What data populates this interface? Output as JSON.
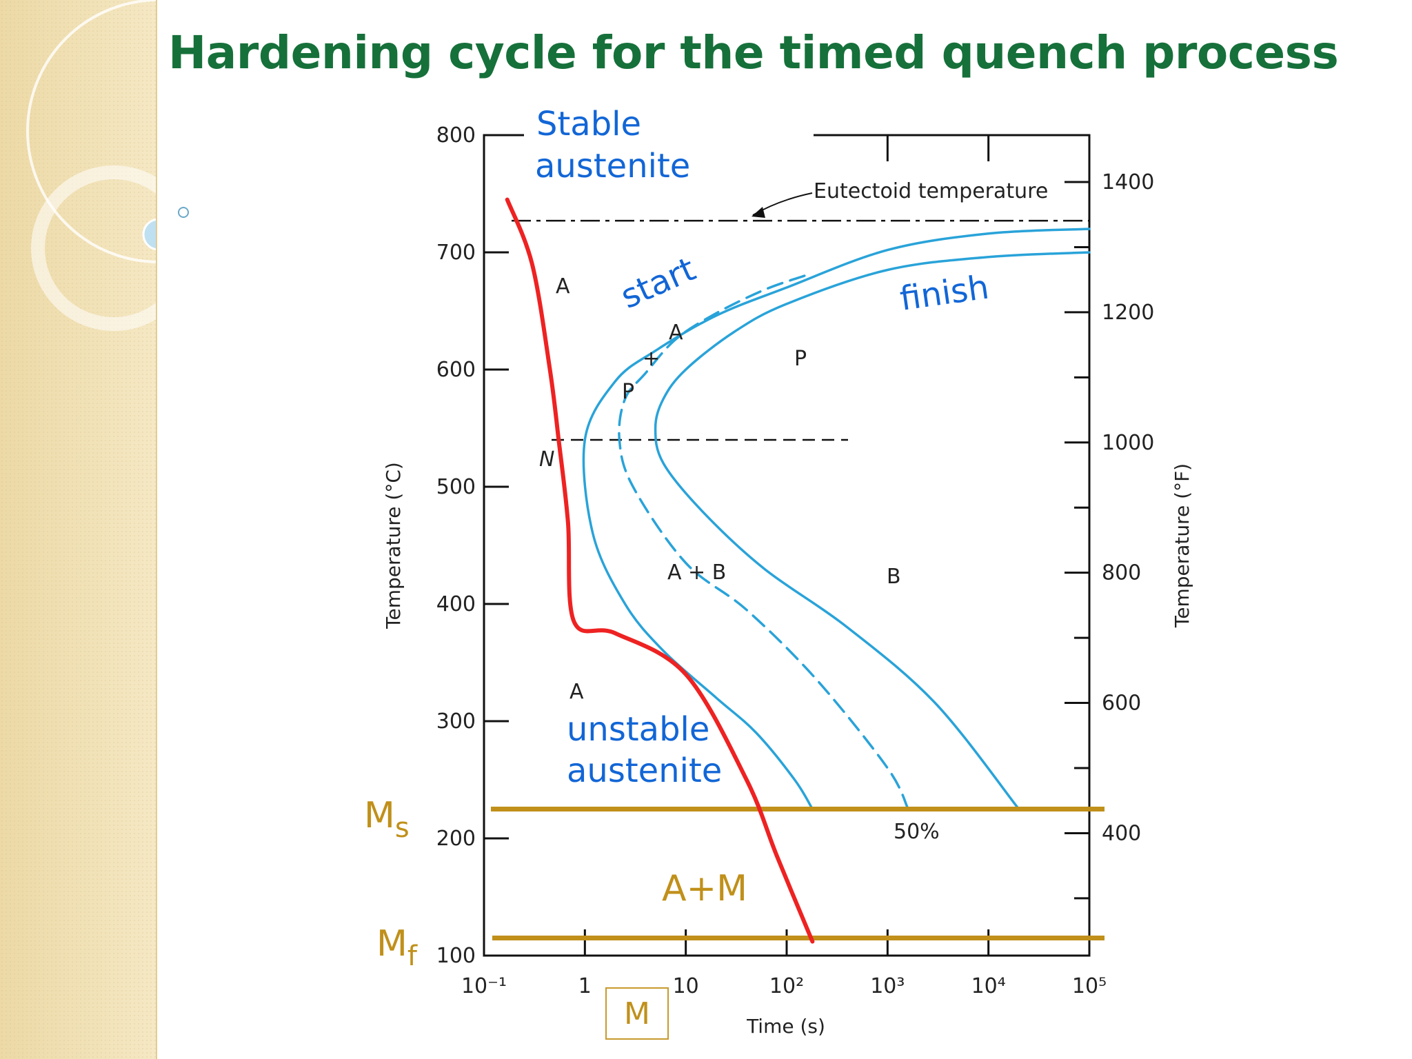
{
  "slide": {
    "title": "Hardening cycle for the timed quench process"
  },
  "colors": {
    "title": "#16703a",
    "curve": "#29a3d9",
    "cooling_path": "#ee2222",
    "martensite_lines": "#c0901a",
    "handwriting": "#1266d6"
  },
  "chart_data": {
    "type": "line",
    "xlabel": "Time (s)",
    "ylabel_left": "Temperature (°C)",
    "ylabel_right": "Temperature (°F)",
    "x_scale": "log",
    "xlim": [
      0.1,
      100000
    ],
    "ylim": [
      100,
      800
    ],
    "x_tick_labels": [
      "10⁻¹",
      "1",
      "10",
      "10²",
      "10³",
      "10⁴",
      "10⁵"
    ],
    "y_tick_labels_left": [
      "800",
      "700",
      "600",
      "500",
      "400",
      "300",
      "200",
      "100"
    ],
    "y_tick_labels_right": [
      "1400",
      "1200",
      "1000",
      "800",
      "600",
      "400"
    ],
    "eutectoid_temperature": 727,
    "eutectoid_label": "Eutectoid temperature",
    "nose_temperature": 540,
    "Ms": 225,
    "Mf": 115,
    "series": [
      {
        "name": "start",
        "points": [
          [
            100000,
            720
          ],
          [
            10000,
            716
          ],
          [
            1000,
            702
          ],
          [
            100,
            670
          ],
          [
            20,
            646
          ],
          [
            5,
            616
          ],
          [
            2,
            590
          ],
          [
            1,
            540
          ],
          [
            1.2,
            460
          ],
          [
            2.5,
            400
          ],
          [
            6,
            360
          ],
          [
            20,
            320
          ],
          [
            50,
            290
          ],
          [
            120,
            250
          ],
          [
            180,
            225
          ]
        ]
      },
      {
        "name": "50%",
        "dashed": true,
        "points": [
          [
            150,
            680
          ],
          [
            60,
            668
          ],
          [
            20,
            648
          ],
          [
            8,
            626
          ],
          [
            4,
            597
          ],
          [
            2.5,
            575
          ],
          [
            2.2,
            540
          ],
          [
            3,
            500
          ],
          [
            10,
            435
          ],
          [
            40,
            395
          ],
          [
            200,
            335
          ],
          [
            1000,
            260
          ],
          [
            1600,
            225
          ]
        ]
      },
      {
        "name": "finish",
        "points": [
          [
            100000,
            700
          ],
          [
            10000,
            696
          ],
          [
            1000,
            685
          ],
          [
            100,
            656
          ],
          [
            30,
            632
          ],
          [
            10,
            600
          ],
          [
            6,
            575
          ],
          [
            5,
            550
          ],
          [
            6,
            520
          ],
          [
            15,
            478
          ],
          [
            60,
            430
          ],
          [
            400,
            380
          ],
          [
            3000,
            315
          ],
          [
            20000,
            225
          ]
        ]
      },
      {
        "name": "cooling path",
        "points": [
          [
            0.17,
            745
          ],
          [
            0.3,
            690
          ],
          [
            0.45,
            600
          ],
          [
            0.55,
            540
          ],
          [
            0.68,
            470
          ],
          [
            0.78,
            385
          ],
          [
            2,
            375
          ],
          [
            10,
            340
          ],
          [
            40,
            250
          ],
          [
            80,
            185
          ],
          [
            180,
            112
          ]
        ]
      }
    ],
    "region_labels": [
      "A",
      "A",
      "P",
      "+",
      "A",
      "P",
      "A + B",
      "B",
      "A",
      "50%"
    ],
    "annotations": [
      "Stable austenite",
      "start",
      "finish",
      "unstable austenite",
      "A+M",
      "M"
    ],
    "Ms_label": "M",
    "Ms_subscript": "s",
    "Mf_label": "M",
    "Mf_subscript": "f",
    "nose_marker": "N",
    "grid": false
  },
  "labels": {
    "stable": "Stable",
    "austenite": "austenite",
    "start": "start",
    "finish": "finish",
    "unstable": "unstable",
    "austenite2": "austenite",
    "a_plus_m": "A+M",
    "m_box": "M",
    "a1": "A",
    "a2": "A",
    "p1": "P",
    "plus": "+",
    "a3": "A",
    "p2": "P",
    "ab": "A + B",
    "b": "B",
    "a4": "A",
    "fifty": "50%"
  }
}
